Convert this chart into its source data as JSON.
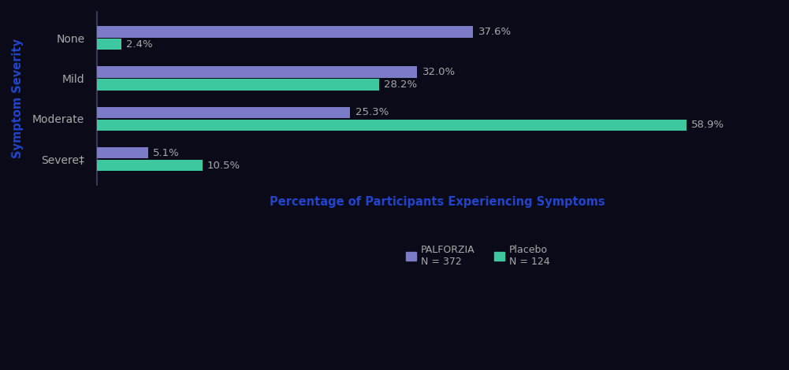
{
  "categories": [
    "Severe‡",
    "Moderate",
    "Mild",
    "None"
  ],
  "palforzia_values": [
    5.1,
    25.3,
    32.0,
    37.6
  ],
  "placebo_values": [
    10.5,
    58.9,
    28.2,
    2.4
  ],
  "palforzia_color": "#7b7bc8",
  "placebo_color": "#3ec8a0",
  "xlabel": "Percentage of Participants Experiencing Symptoms",
  "ylabel": "Symptom Severity",
  "xlabel_color": "#2244cc",
  "ylabel_color": "#2244cc",
  "bar_height": 0.28,
  "bar_gap": 0.03,
  "xlim": [
    0,
    68
  ],
  "legend_palforzia": "PALFORZIA\nN = 372",
  "legend_placebo": "Placebo\nN = 124",
  "background_color": "#0a0a18",
  "text_color": "#aaaaaa",
  "label_fontsize": 9.5,
  "xlabel_fontsize": 10.5,
  "ylabel_fontsize": 10.5,
  "tick_fontsize": 10
}
